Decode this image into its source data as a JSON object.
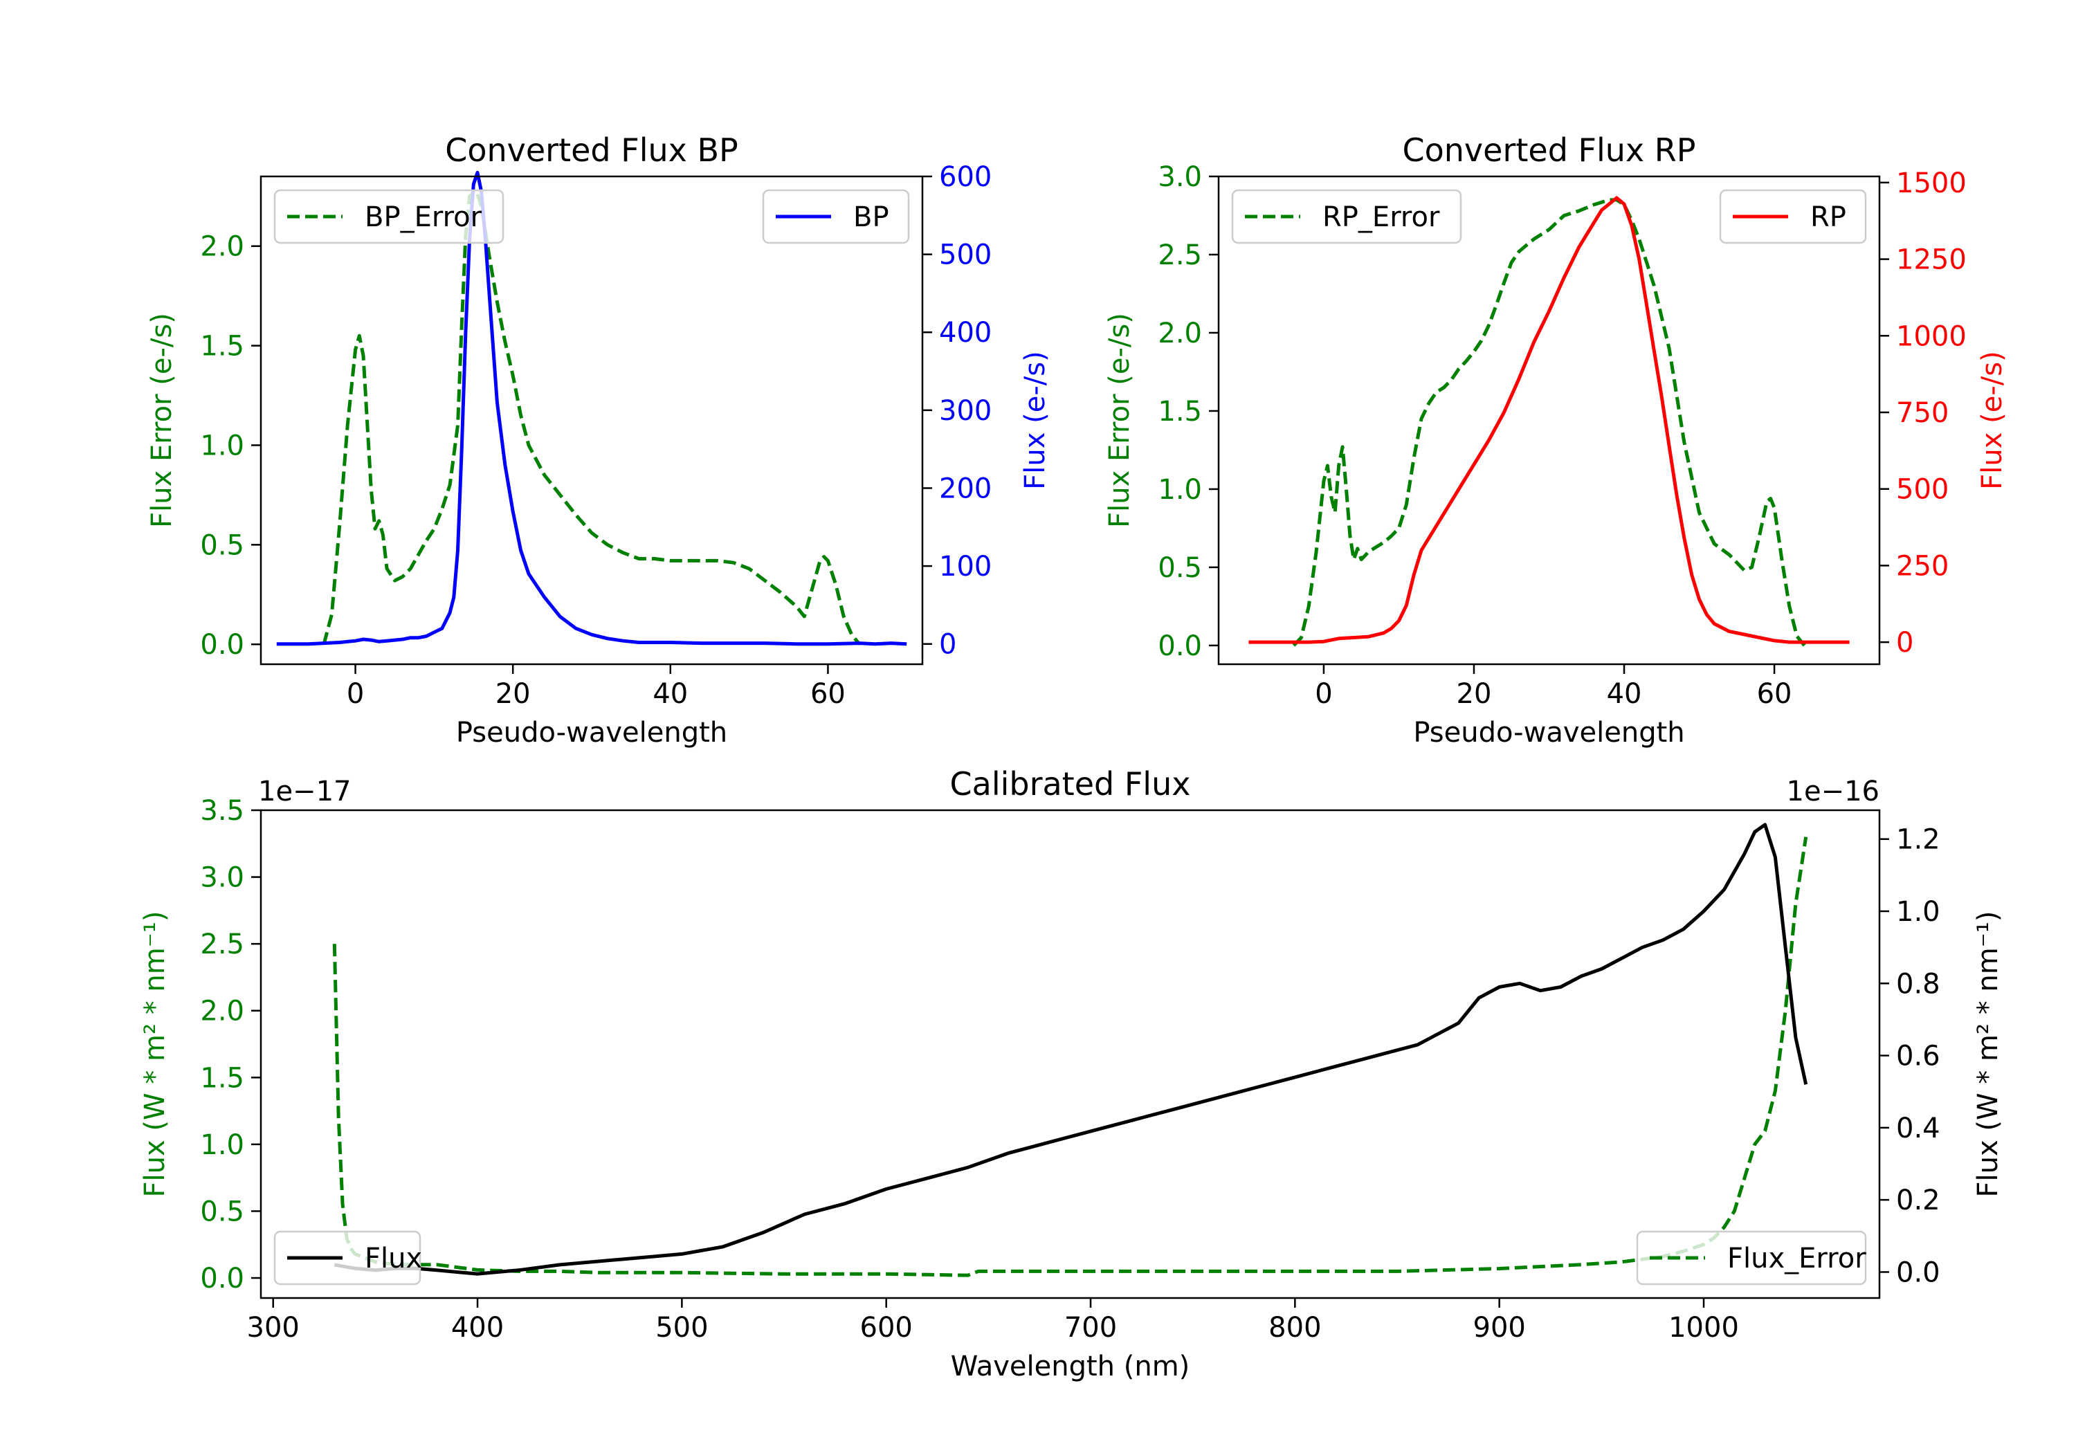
{
  "colors": {
    "error": "#008000",
    "bp": "#0000ff",
    "rp": "#ff0000",
    "flux": "#000000",
    "axis": "#000000"
  },
  "chart_data": [
    {
      "id": "bp",
      "type": "line",
      "title": "Converted Flux BP",
      "xlabel": "Pseudo-wavelength",
      "ylabel_left": "Flux Error (e-/s)",
      "ylabel_right": "Flux (e-/s)",
      "xlim": [
        -12,
        72
      ],
      "ylim_left": [
        -0.1,
        2.35
      ],
      "ylim_right": [
        -26,
        600
      ],
      "xticks": [
        0,
        20,
        40,
        60
      ],
      "yticks_left": [
        0.0,
        0.5,
        1.0,
        1.5,
        2.0
      ],
      "yticks_right": [
        0,
        100,
        200,
        300,
        400,
        500,
        600
      ],
      "legends": [
        {
          "label": "BP_Error",
          "position": "upper left"
        },
        {
          "label": "BP",
          "position": "upper right"
        }
      ],
      "series": [
        {
          "name": "BP_Error",
          "axis": "left",
          "style": "dashed",
          "color_key": "error",
          "x": [
            -4,
            -3,
            -2,
            -1,
            0,
            0.5,
            1,
            2,
            2.5,
            3,
            3.5,
            4,
            5,
            6,
            7,
            8,
            9,
            10,
            11,
            12,
            13,
            13.5,
            14,
            14.5,
            15,
            15.5,
            16,
            17,
            18,
            19,
            20,
            21,
            22,
            24,
            26,
            28,
            30,
            32,
            34,
            36,
            38,
            40,
            42,
            44,
            46,
            48,
            50,
            52,
            54,
            56,
            57,
            58,
            59,
            59.5,
            60,
            61,
            62,
            63,
            64
          ],
          "y": [
            0.0,
            0.15,
            0.6,
            1.1,
            1.48,
            1.55,
            1.45,
            0.78,
            0.58,
            0.62,
            0.55,
            0.38,
            0.32,
            0.34,
            0.38,
            0.45,
            0.52,
            0.58,
            0.68,
            0.8,
            1.1,
            1.6,
            2.05,
            2.25,
            2.27,
            2.26,
            2.2,
            1.95,
            1.72,
            1.52,
            1.35,
            1.15,
            1.0,
            0.85,
            0.75,
            0.65,
            0.56,
            0.5,
            0.46,
            0.43,
            0.43,
            0.42,
            0.42,
            0.42,
            0.42,
            0.41,
            0.38,
            0.32,
            0.26,
            0.19,
            0.14,
            0.28,
            0.42,
            0.44,
            0.42,
            0.3,
            0.14,
            0.05,
            0.0
          ]
        },
        {
          "name": "BP",
          "axis": "right",
          "style": "solid",
          "color_key": "bp",
          "x": [
            -10,
            -6,
            -4,
            -2,
            0,
            1,
            2,
            3,
            4,
            5,
            6,
            7,
            8,
            9,
            10,
            11,
            12,
            12.5,
            13,
            13.5,
            14,
            14.5,
            15,
            15.5,
            16,
            16.5,
            17,
            17.5,
            18,
            19,
            20,
            21,
            22,
            24,
            26,
            28,
            30,
            32,
            34,
            36,
            40,
            44,
            48,
            52,
            56,
            60,
            64,
            66,
            68,
            70
          ],
          "y": [
            0,
            0,
            1,
            2,
            4,
            6,
            5,
            3,
            4,
            5,
            6,
            8,
            8,
            10,
            15,
            20,
            40,
            60,
            120,
            250,
            400,
            520,
            590,
            605,
            580,
            520,
            450,
            380,
            310,
            230,
            170,
            120,
            90,
            60,
            35,
            20,
            12,
            7,
            4,
            2,
            2,
            1,
            1,
            1,
            0,
            0,
            1,
            0,
            1,
            0
          ]
        }
      ]
    },
    {
      "id": "rp",
      "type": "line",
      "title": "Converted Flux RP",
      "xlabel": "Pseudo-wavelength",
      "ylabel_left": "Flux Error (e-/s)",
      "ylabel_right": "Flux (e-/s)",
      "xlim": [
        -14,
        74
      ],
      "ylim_left": [
        -0.12,
        3.0
      ],
      "ylim_right": [
        -72,
        1520
      ],
      "xticks": [
        0,
        20,
        40,
        60
      ],
      "yticks_left": [
        0.0,
        0.5,
        1.0,
        1.5,
        2.0,
        2.5,
        3.0
      ],
      "yticks_right": [
        0,
        250,
        500,
        750,
        1000,
        1250,
        1500
      ],
      "legends": [
        {
          "label": "RP_Error",
          "position": "upper left"
        },
        {
          "label": "RP",
          "position": "upper right"
        }
      ],
      "series": [
        {
          "name": "RP_Error",
          "axis": "left",
          "style": "dashed",
          "color_key": "error",
          "x": [
            -4,
            -3,
            -2,
            -1,
            0,
            0.5,
            1,
            1.5,
            2,
            2.5,
            3,
            3.5,
            4,
            4.5,
            5,
            6,
            7,
            8,
            9,
            10,
            11,
            12,
            13,
            14,
            15,
            16,
            17,
            18,
            19,
            20,
            21,
            22,
            23,
            24,
            25,
            26,
            27,
            28,
            30,
            32,
            34,
            36,
            38,
            39,
            40,
            41,
            42,
            44,
            46,
            48,
            50,
            52,
            54,
            56,
            57,
            58,
            59,
            59.5,
            60,
            61,
            62,
            63,
            64
          ],
          "y": [
            0.0,
            0.05,
            0.25,
            0.6,
            1.05,
            1.15,
            0.95,
            0.85,
            1.15,
            1.27,
            1.0,
            0.7,
            0.55,
            0.62,
            0.55,
            0.6,
            0.63,
            0.66,
            0.7,
            0.75,
            0.9,
            1.2,
            1.45,
            1.55,
            1.62,
            1.65,
            1.7,
            1.77,
            1.82,
            1.88,
            1.95,
            2.05,
            2.18,
            2.32,
            2.45,
            2.52,
            2.56,
            2.6,
            2.66,
            2.75,
            2.78,
            2.82,
            2.85,
            2.85,
            2.82,
            2.72,
            2.6,
            2.3,
            1.9,
            1.3,
            0.85,
            0.65,
            0.58,
            0.48,
            0.5,
            0.7,
            0.92,
            0.94,
            0.88,
            0.55,
            0.25,
            0.06,
            0.0
          ]
        },
        {
          "name": "RP",
          "axis": "right",
          "style": "solid",
          "color_key": "rp",
          "x": [
            -10,
            -6,
            -2,
            0,
            2,
            4,
            6,
            8,
            9,
            10,
            11,
            12,
            13,
            14,
            16,
            18,
            20,
            22,
            24,
            26,
            28,
            30,
            32,
            34,
            36,
            37,
            38,
            39,
            40,
            41,
            42,
            43,
            44,
            45,
            46,
            47,
            48,
            49,
            50,
            51,
            52,
            54,
            56,
            58,
            60,
            62,
            64,
            66,
            68,
            70
          ],
          "y": [
            0,
            0,
            0,
            2,
            12,
            15,
            18,
            30,
            45,
            70,
            120,
            220,
            300,
            340,
            420,
            500,
            580,
            660,
            750,
            860,
            980,
            1080,
            1190,
            1290,
            1370,
            1410,
            1430,
            1450,
            1430,
            1360,
            1250,
            1100,
            950,
            800,
            640,
            480,
            340,
            220,
            140,
            90,
            60,
            35,
            25,
            15,
            5,
            0,
            0,
            0,
            0,
            0
          ]
        }
      ]
    },
    {
      "id": "calibrated",
      "type": "line",
      "title": "Calibrated Flux",
      "xlabel": "Wavelength (nm)",
      "ylabel_left": "Flux (W * m² * nm⁻¹)",
      "ylabel_right": "Flux (W * m² * nm⁻¹)",
      "offset_left": "1e−17",
      "offset_right": "1e−16",
      "xlim": [
        294,
        1086
      ],
      "ylim_left": [
        -0.15,
        3.5
      ],
      "ylim_right": [
        -0.072,
        1.28
      ],
      "xticks": [
        300,
        400,
        500,
        600,
        700,
        800,
        900,
        1000
      ],
      "yticks_left": [
        0.0,
        0.5,
        1.0,
        1.5,
        2.0,
        2.5,
        3.0,
        3.5
      ],
      "yticks_right": [
        0.0,
        0.2,
        0.4,
        0.6,
        0.8,
        1.0,
        1.2
      ],
      "legends": [
        {
          "label": "Flux",
          "position": "lower left"
        },
        {
          "label": "Flux_Error",
          "position": "lower right"
        }
      ],
      "series": [
        {
          "name": "Flux_Error",
          "axis": "left",
          "style": "dashed",
          "color_key": "error",
          "x": [
            330,
            332,
            334,
            336,
            338,
            340,
            345,
            350,
            360,
            370,
            380,
            390,
            400,
            420,
            440,
            460,
            480,
            500,
            550,
            600,
            640,
            645,
            700,
            750,
            800,
            850,
            900,
            940,
            960,
            980,
            990,
            1000,
            1005,
            1010,
            1015,
            1020,
            1025,
            1030,
            1035,
            1040,
            1045,
            1050
          ],
          "y": [
            2.5,
            1.2,
            0.55,
            0.3,
            0.22,
            0.18,
            0.15,
            0.12,
            0.1,
            0.1,
            0.1,
            0.08,
            0.06,
            0.05,
            0.05,
            0.04,
            0.04,
            0.04,
            0.03,
            0.03,
            0.02,
            0.05,
            0.05,
            0.05,
            0.05,
            0.05,
            0.07,
            0.1,
            0.12,
            0.16,
            0.2,
            0.25,
            0.3,
            0.38,
            0.5,
            0.75,
            1.0,
            1.1,
            1.4,
            2.0,
            2.8,
            3.3
          ]
        },
        {
          "name": "Flux",
          "axis": "right",
          "style": "solid",
          "color_key": "flux",
          "x": [
            330,
            340,
            350,
            360,
            370,
            380,
            390,
            400,
            420,
            440,
            460,
            480,
            500,
            520,
            540,
            560,
            580,
            600,
            620,
            640,
            660,
            680,
            700,
            720,
            740,
            760,
            780,
            800,
            820,
            840,
            860,
            880,
            890,
            900,
            910,
            920,
            930,
            940,
            950,
            960,
            970,
            980,
            990,
            1000,
            1010,
            1020,
            1025,
            1030,
            1035,
            1040,
            1045,
            1050
          ],
          "y": [
            0.02,
            0.01,
            0.005,
            0.01,
            0.01,
            0.005,
            0.0,
            -0.005,
            0.005,
            0.02,
            0.03,
            0.04,
            0.05,
            0.07,
            0.11,
            0.16,
            0.19,
            0.23,
            0.26,
            0.29,
            0.33,
            0.36,
            0.39,
            0.42,
            0.45,
            0.48,
            0.51,
            0.54,
            0.57,
            0.6,
            0.63,
            0.69,
            0.76,
            0.79,
            0.8,
            0.78,
            0.79,
            0.82,
            0.84,
            0.87,
            0.9,
            0.92,
            0.95,
            1.0,
            1.06,
            1.16,
            1.22,
            1.24,
            1.15,
            0.9,
            0.65,
            0.52
          ]
        }
      ]
    }
  ]
}
